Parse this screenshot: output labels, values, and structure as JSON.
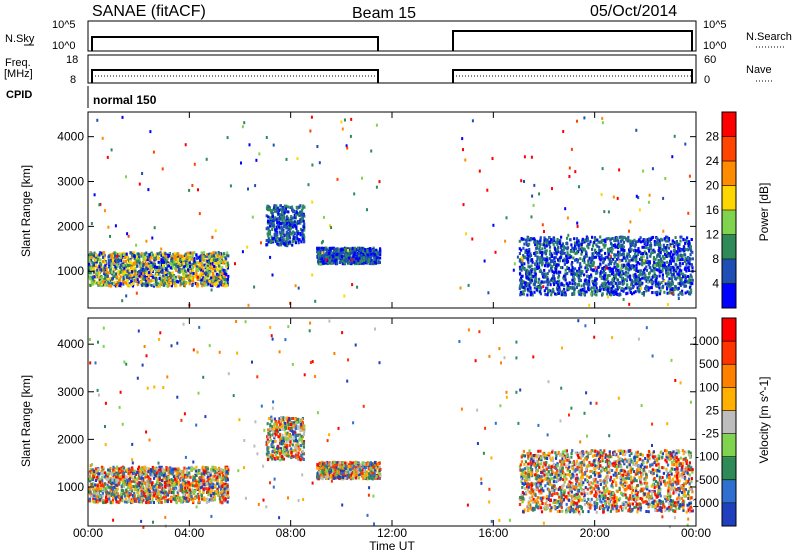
{
  "header": {
    "title": "SANAE (fitACF)",
    "beam": "Beam 15",
    "date": "05/Oct/2014"
  },
  "top_panels": {
    "nsky_label": "N.Sky",
    "nsky_ticks": [
      "10^5",
      "10^0"
    ],
    "nsearch_label": "N.Search",
    "nsearch_ticks": [
      "10^5",
      "10^0"
    ],
    "freq_label": "Freq.",
    "freq_unit": "[MHz]",
    "freq_ticks": [
      "18",
      "8"
    ],
    "nave_label": "Nave",
    "nave_ticks": [
      "60",
      "0"
    ],
    "cpid_label": "CPID",
    "cpid_value": "normal 150"
  },
  "chart_data": [
    {
      "type": "heatmap",
      "name": "power",
      "ylabel": "Slant Range [km]",
      "xlabel": "",
      "x_ticks": [
        "00:00",
        "04:00",
        "08:00",
        "12:00",
        "16:00",
        "20:00",
        "00:00"
      ],
      "y_ticks": [
        "1000",
        "2000",
        "3000",
        "4000"
      ],
      "colorbar_label": "Power [dB]",
      "colorbar_ticks": [
        "28",
        "24",
        "20",
        "16",
        "12",
        "8",
        "4"
      ],
      "colors": [
        "#0000ff",
        "#1f4fb4",
        "#2e8b57",
        "#7fd34e",
        "#ffd700",
        "#ff8c00",
        "#ff4500",
        "#ff0000"
      ],
      "features": [
        {
          "from": "00:00",
          "to": "05:30",
          "range_km": [
            700,
            1450
          ],
          "level": "low-high"
        },
        {
          "from": "07:00",
          "to": "08:30",
          "range_km": [
            1600,
            2500
          ],
          "level": "low"
        },
        {
          "from": "09:00",
          "to": "11:30",
          "range_km": [
            1200,
            1550
          ],
          "level": "low"
        },
        {
          "from": "17:00",
          "to": "23:50",
          "range_km": [
            500,
            1800
          ],
          "level": "low"
        }
      ]
    },
    {
      "type": "heatmap",
      "name": "velocity",
      "ylabel": "Slant Range [km]",
      "xlabel": "Time UT",
      "x_ticks": [
        "00:00",
        "04:00",
        "08:00",
        "12:00",
        "16:00",
        "20:00",
        "00:00"
      ],
      "y_ticks": [
        "1000",
        "2000",
        "3000",
        "4000"
      ],
      "colorbar_label": "Velocity [m s^-1]",
      "colorbar_ticks": [
        "1000",
        "500",
        "100",
        "25",
        "-25",
        "-100",
        "-500",
        "-1000"
      ],
      "colors": [
        "#1f3fbf",
        "#2e6fd0",
        "#2e8b57",
        "#7fd34e",
        "#bdbdbd",
        "#ffb000",
        "#ff7f00",
        "#ff3300",
        "#ff0000"
      ],
      "features": [
        {
          "from": "00:00",
          "to": "05:30",
          "range_km": [
            700,
            1450
          ]
        },
        {
          "from": "07:00",
          "to": "08:30",
          "range_km": [
            1600,
            2500
          ]
        },
        {
          "from": "09:00",
          "to": "11:30",
          "range_km": [
            1200,
            1550
          ]
        },
        {
          "from": "17:00",
          "to": "23:50",
          "range_km": [
            500,
            1800
          ]
        }
      ]
    }
  ]
}
